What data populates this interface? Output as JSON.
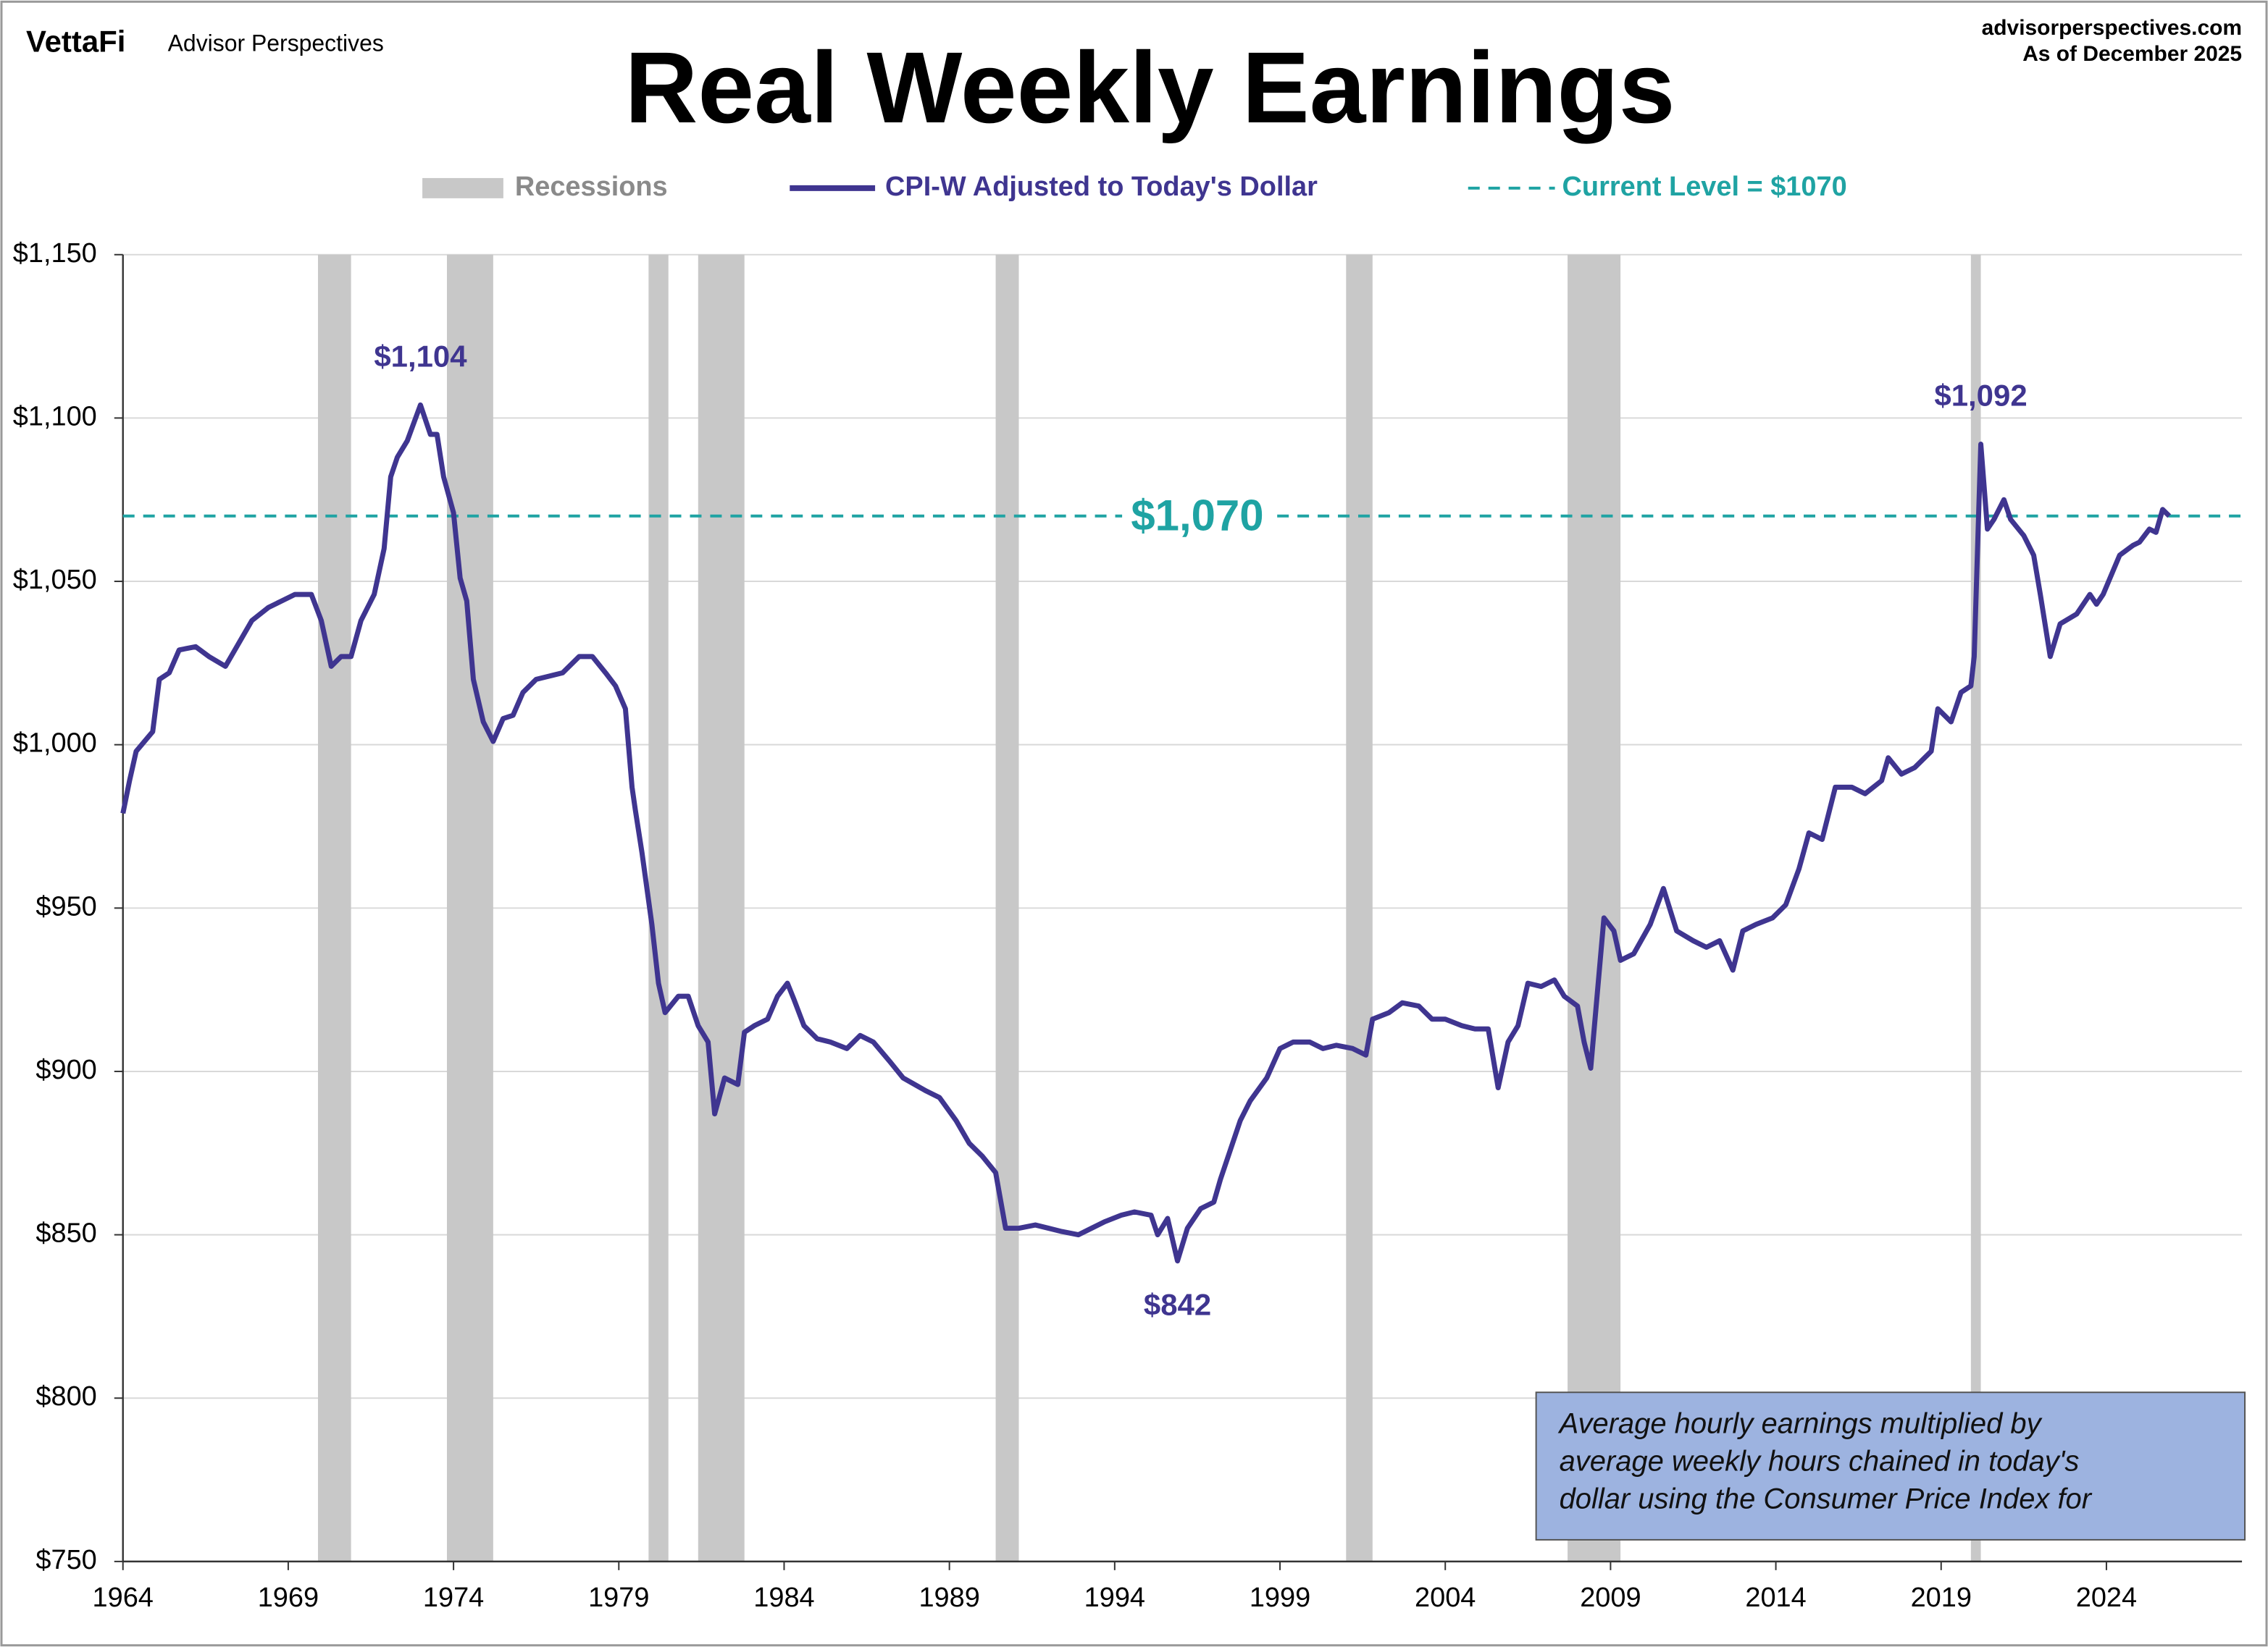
{
  "header": {
    "brand": "VettaFi",
    "publisher": "Advisor Perspectives",
    "site": "advisorperspectives.com",
    "date": "As of December 2025"
  },
  "chart_data": {
    "type": "line",
    "title": "Real Weekly Earnings",
    "xlim": [
      1964,
      2028.1
    ],
    "xticks": [
      1964,
      1969,
      1974,
      1979,
      1984,
      1989,
      1994,
      1999,
      2004,
      2009,
      2014,
      2019,
      2024
    ],
    "ylim": [
      750,
      1150
    ],
    "yticks": [
      {
        "value": 750,
        "label": "$750"
      },
      {
        "value": 800,
        "label": "$800"
      },
      {
        "value": 850,
        "label": "$850"
      },
      {
        "value": 900,
        "label": "$900"
      },
      {
        "value": 950,
        "label": "$950"
      },
      {
        "value": 1000,
        "label": "$1,000"
      },
      {
        "value": 1050,
        "label": "$1,050"
      },
      {
        "value": 1100,
        "label": "$1,100"
      },
      {
        "value": 1150,
        "label": "$1,150"
      }
    ],
    "grid": true,
    "recessions": {
      "name": "Recessions",
      "color": "#c8c8c8",
      "spans": [
        [
          1969.9,
          1970.9
        ],
        [
          1973.8,
          1975.2
        ],
        [
          1979.9,
          1980.5
        ],
        [
          1981.4,
          1982.8
        ],
        [
          1990.4,
          1991.1
        ],
        [
          2001.0,
          2001.8
        ],
        [
          2007.7,
          2009.3
        ],
        [
          2019.9,
          2020.2
        ]
      ]
    },
    "reference_line": {
      "name": "Current Level = $1070",
      "value": 1070,
      "color": "#1fa3a3",
      "label": "$1,070",
      "label_x": 1996.5
    },
    "series": [
      {
        "name": "CPI-W Adjusted to Today's Dollar",
        "color": "#3f3590",
        "x": [
          1964.0,
          1964.2,
          1964.4,
          1964.9,
          1965.1,
          1965.4,
          1965.7,
          1966.2,
          1966.6,
          1967.1,
          1967.5,
          1967.9,
          1968.4,
          1968.8,
          1969.2,
          1969.7,
          1970.0,
          1970.3,
          1970.6,
          1970.9,
          1971.2,
          1971.6,
          1971.9,
          1972.1,
          1972.3,
          1972.6,
          1973.0,
          1973.3,
          1973.5,
          1973.7,
          1974.0,
          1974.2,
          1974.4,
          1974.6,
          1974.9,
          1975.2,
          1975.5,
          1975.8,
          1976.1,
          1976.5,
          1976.9,
          1977.3,
          1977.8,
          1978.2,
          1978.6,
          1978.9,
          1979.2,
          1979.4,
          1979.5,
          1979.7,
          1980.0,
          1980.2,
          1980.4,
          1980.8,
          1981.1,
          1981.4,
          1981.7,
          1981.9,
          1982.2,
          1982.6,
          1982.8,
          1983.1,
          1983.5,
          1983.8,
          1984.1,
          1984.3,
          1984.6,
          1985.0,
          1985.4,
          1985.9,
          1986.3,
          1986.7,
          1987.2,
          1987.6,
          1988.3,
          1988.7,
          1989.2,
          1989.6,
          1990.0,
          1990.4,
          1990.7,
          1991.1,
          1991.6,
          1992.0,
          1992.4,
          1992.9,
          1993.3,
          1993.7,
          1994.2,
          1994.6,
          1995.1,
          1995.3,
          1995.6,
          1995.9,
          1996.2,
          1996.6,
          1997.0,
          1997.2,
          1997.5,
          1997.8,
          1998.1,
          1998.6,
          1999.0,
          1999.4,
          1999.9,
          2000.3,
          2000.7,
          2001.2,
          2001.6,
          2001.8,
          2002.3,
          2002.7,
          2003.2,
          2003.6,
          2004.0,
          2004.5,
          2004.9,
          2005.3,
          2005.6,
          2005.9,
          2006.2,
          2006.5,
          2006.9,
          2007.3,
          2007.6,
          2008.0,
          2008.2,
          2008.4,
          2008.8,
          2009.1,
          2009.3,
          2009.7,
          2010.2,
          2010.6,
          2011.0,
          2011.5,
          2011.9,
          2012.3,
          2012.7,
          2013.0,
          2013.4,
          2013.9,
          2014.3,
          2014.7,
          2015.0,
          2015.4,
          2015.8,
          2016.3,
          2016.7,
          2017.2,
          2017.4,
          2017.8,
          2018.2,
          2018.7,
          2018.9,
          2019.3,
          2019.6,
          2019.9,
          2020.0,
          2020.2,
          2020.4,
          2020.6,
          2020.9,
          2021.1,
          2021.5,
          2021.8,
          2022.0,
          2022.3,
          2022.6,
          2023.1,
          2023.5,
          2023.7,
          2023.9,
          2024.4,
          2024.8,
          2025.0,
          2025.3,
          2025.5,
          2025.7,
          2025.9
        ],
        "values": [
          979,
          989,
          998,
          1004,
          1020,
          1022,
          1029,
          1030,
          1027,
          1024,
          1031,
          1038,
          1042,
          1044,
          1046,
          1046,
          1038,
          1024,
          1027,
          1027,
          1038,
          1046,
          1060,
          1082,
          1088,
          1093,
          1104,
          1095,
          1095,
          1082,
          1071,
          1051,
          1044,
          1020,
          1007,
          1001,
          1008,
          1009,
          1016,
          1020,
          1021,
          1022,
          1027,
          1027,
          1022,
          1018,
          1011,
          987,
          980,
          967,
          945,
          927,
          918,
          923,
          923,
          914,
          909,
          887,
          898,
          896,
          912,
          914,
          916,
          923,
          927,
          922,
          914,
          910,
          909,
          907,
          911,
          909,
          903,
          898,
          894,
          892,
          885,
          878,
          874,
          869,
          852,
          852,
          853,
          852,
          851,
          850,
          852,
          854,
          856,
          857,
          856,
          850,
          855,
          842,
          852,
          858,
          860,
          867,
          876,
          885,
          891,
          898,
          907,
          909,
          909,
          907,
          908,
          907,
          905,
          916,
          918,
          921,
          920,
          916,
          916,
          914,
          913,
          913,
          895,
          909,
          914,
          927,
          926,
          928,
          923,
          920,
          909,
          901,
          947,
          943,
          934,
          936,
          945,
          956,
          943,
          940,
          938,
          940,
          931,
          943,
          945,
          947,
          951,
          962,
          973,
          971,
          987,
          987,
          985,
          989,
          996,
          991,
          993,
          998,
          1011,
          1007,
          1016,
          1018,
          1027,
          1092,
          1066,
          1069,
          1075,
          1069,
          1064,
          1058,
          1046,
          1027,
          1037,
          1040,
          1046,
          1043,
          1046,
          1058,
          1061,
          1062,
          1066,
          1065,
          1072,
          1070
        ]
      }
    ],
    "annotations": [
      {
        "text": "$1,104",
        "x": 1973.0,
        "y": 1104
      },
      {
        "text": "$1,092",
        "x": 2020.2,
        "y": 1092
      },
      {
        "text": "$842",
        "x": 1995.9,
        "y": 842
      }
    ],
    "note": [
      "Average hourly earnings multiplied by",
      "average weekly hours chained in today's",
      "dollar using the  Consumer Price Index for"
    ]
  }
}
